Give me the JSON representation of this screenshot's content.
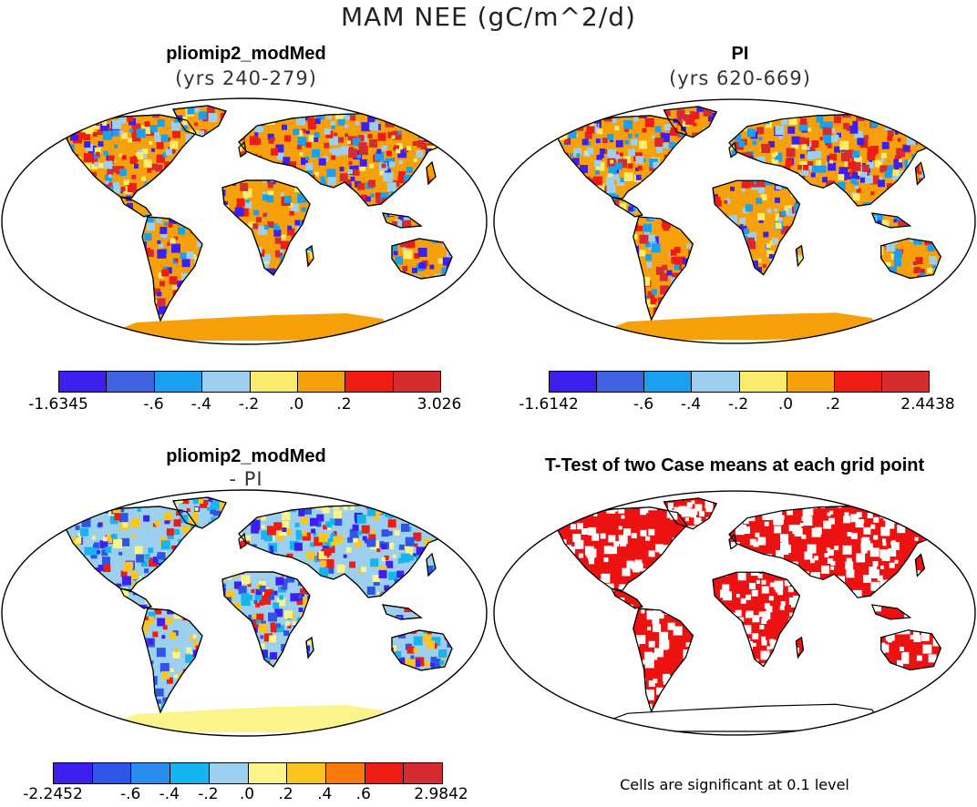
{
  "figure": {
    "title": "MAM NEE (gC/m^2/d)"
  },
  "panels": [
    {
      "id": "p1",
      "title": "pliomip2_modMed",
      "subtitle": "(yrs 240-279)",
      "colorbar": {
        "colors": [
          "#3d1ff0",
          "#3f62e0",
          "#1aa0f0",
          "#9dd0ee",
          "#fbec6e",
          "#f7a10a",
          "#ee1c12",
          "#d62b2f"
        ],
        "tick_labels": [
          "-1.6345",
          "-.6",
          "-.4",
          "-.2",
          ".0",
          ".2",
          "3.026"
        ]
      }
    },
    {
      "id": "p2",
      "title": "PI",
      "subtitle": "(yrs 620-669)",
      "colorbar": {
        "colors": [
          "#3d1ff0",
          "#3f62e0",
          "#1aa0f0",
          "#9dd0ee",
          "#fbec6e",
          "#f7a10a",
          "#ee1c12",
          "#d62b2f"
        ],
        "tick_labels": [
          "-1.6142",
          "-.6",
          "-.4",
          "-.2",
          ".0",
          ".2",
          "2.4438"
        ]
      }
    },
    {
      "id": "p3",
      "title": "pliomip2_modMed",
      "subtitle": "- PI",
      "colorbar": {
        "colors": [
          "#3d1ff0",
          "#2f55e6",
          "#2a8df0",
          "#17b5f0",
          "#9dd0ee",
          "#fbf48a",
          "#fbc41e",
          "#f77a0a",
          "#ee1c12",
          "#d62b2f"
        ],
        "tick_labels": [
          "-2.2452",
          "-.6",
          "-.4",
          "-.2",
          ".0",
          ".2",
          ".4",
          ".6",
          "2.9842"
        ]
      }
    },
    {
      "id": "p4",
      "title": "T-Test of two Case means at each grid point",
      "note": "Cells are significant at 0.1 level"
    }
  ],
  "map_colors": {
    "p1": {
      "base": "#f7a10a",
      "antarctica": "#f7a10a",
      "accents": [
        "#3d1ff0",
        "#1aa0f0",
        "#ee1c12",
        "#d62b2f",
        "#9dd0ee",
        "#fbec6e"
      ]
    },
    "p2": {
      "base": "#f7a10a",
      "antarctica": "#f7a10a",
      "accents": [
        "#3d1ff0",
        "#1aa0f0",
        "#ee1c12",
        "#d62b2f",
        "#9dd0ee",
        "#fbec6e"
      ]
    },
    "p3": {
      "base": "#9dd0ee",
      "antarctica": "#fbf48a",
      "accents": [
        "#2f55e6",
        "#17b5f0",
        "#fbf48a",
        "#fbc41e",
        "#ee1c12",
        "#3d1ff0"
      ]
    },
    "p4": {
      "base": "#ee1111",
      "antarctica": "#ffffff",
      "accents": [
        "#ffffff"
      ]
    }
  }
}
